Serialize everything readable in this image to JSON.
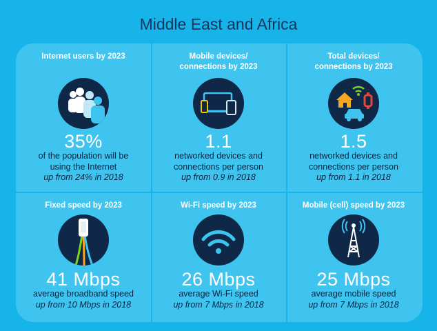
{
  "title": "Middle East and Africa",
  "cells": [
    {
      "heading": "Internet users by 2023",
      "value": "35%",
      "line1": "of the population will be",
      "line2": "using the Internet",
      "change": "up from 24% in 2018"
    },
    {
      "heading": "Mobile devices/ connections by 2023",
      "value": "1.1",
      "line1": "networked devices and",
      "line2": "connections per person",
      "change": "up from 0.9 in 2018"
    },
    {
      "heading": "Total devices/ connections by 2023",
      "value": "1.5",
      "line1": "networked devices and",
      "line2": "connections per person",
      "change": "up from 1.1 in 2018"
    },
    {
      "heading": "Fixed speed by 2023",
      "value": "41 Mbps",
      "line1": "average broadband speed",
      "change": "up from 10 Mbps in 2018"
    },
    {
      "heading": "Wi-Fi speed by 2023",
      "value": "26 Mbps",
      "line1": "average Wi-Fi speed",
      "change": "up from 7 Mbps in 2018"
    },
    {
      "heading": "Mobile (cell) speed by 2023",
      "value": "25 Mbps",
      "line1": "average mobile speed",
      "change": "up from 7 Mbps in 2018"
    }
  ],
  "icons": [
    "people-icon",
    "devices-icon",
    "connected-home-icon",
    "fiber-cable-icon",
    "wifi-icon",
    "cell-tower-icon"
  ],
  "colors": {
    "background": "#16b4e8",
    "panel": "#3ec4ef",
    "icon_circle": "#0f2847",
    "title": "#16365f"
  }
}
